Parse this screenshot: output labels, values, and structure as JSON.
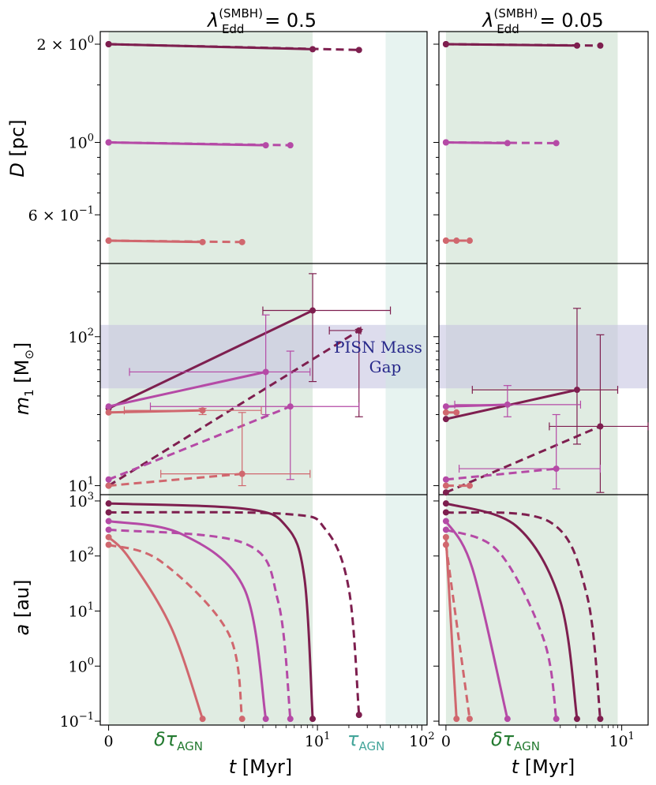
{
  "figure": {
    "col_titles": [
      {
        "text": "λ",
        "sup": "(SMBH)",
        "sub": "Edd",
        "rest": " = 0.5"
      },
      {
        "text": "λ",
        "sup": "(SMBH)",
        "sub": "Edd",
        "rest": " = 0.05"
      }
    ],
    "xlabel": {
      "var": "t",
      "unit": " [Myr]"
    },
    "band_labels": {
      "short": {
        "main": "δτ",
        "sub": "AGN"
      },
      "long": {
        "main": "τ",
        "sub": "AGN"
      }
    },
    "pisn_label": [
      "PISN Mass",
      "Gap"
    ],
    "colors": {
      "c1": "#7e1f4f",
      "c2": "#b54aa6",
      "c3": "#d0676e",
      "band_short": "#d5e6d8",
      "band_long": "#cfe8e2",
      "pisn": "#c6c4e1",
      "short_label": "#237a30",
      "long_label": "#44a59a",
      "pisn_text": "#27288a"
    }
  },
  "chart_data": [
    {
      "type": "line",
      "panel": "D vs t, λ=0.5",
      "ylabel": {
        "var": "D",
        "unit": " [pc]"
      },
      "ytick_labels": [
        "2 × 10",
        "10",
        "6 × 10"
      ],
      "ytick_sups": [
        "0",
        "0",
        "−1"
      ],
      "series": [
        {
          "color": "c1",
          "style": "solid",
          "points": [
            [
              0,
              2.0
            ],
            [
              9,
              1.93
            ]
          ]
        },
        {
          "color": "c1",
          "style": "dashed",
          "points": [
            [
              0,
              2.0
            ],
            [
              25,
              1.92
            ]
          ]
        },
        {
          "color": "c2",
          "style": "solid",
          "points": [
            [
              0,
              1.0
            ],
            [
              3.2,
              0.98
            ]
          ]
        },
        {
          "color": "c2",
          "style": "dashed",
          "points": [
            [
              0,
              1.0
            ],
            [
              5.5,
              0.98
            ]
          ]
        },
        {
          "color": "c3",
          "style": "solid",
          "points": [
            [
              0,
              0.5
            ],
            [
              0.9,
              0.495
            ]
          ]
        },
        {
          "color": "c3",
          "style": "dashed",
          "points": [
            [
              0,
              0.5
            ],
            [
              1.9,
              0.495
            ]
          ]
        }
      ]
    },
    {
      "type": "line",
      "panel": "D vs t, λ=0.05",
      "series": [
        {
          "color": "c1",
          "style": "solid",
          "points": [
            [
              0,
              2.0
            ],
            [
              3.1,
              1.98
            ]
          ]
        },
        {
          "color": "c1",
          "style": "dashed",
          "points": [
            [
              0,
              2.0
            ],
            [
              5.7,
              1.98
            ]
          ]
        },
        {
          "color": "c2",
          "style": "solid",
          "points": [
            [
              0,
              1.0
            ],
            [
              0.7,
              0.995
            ]
          ]
        },
        {
          "color": "c2",
          "style": "dashed",
          "points": [
            [
              0,
              1.0
            ],
            [
              1.8,
              0.995
            ]
          ]
        },
        {
          "color": "c3",
          "style": "solid",
          "points": [
            [
              0,
              0.5
            ],
            [
              0.12,
              0.5
            ]
          ]
        },
        {
          "color": "c3",
          "style": "dashed",
          "points": [
            [
              0,
              0.5
            ],
            [
              0.27,
              0.5
            ]
          ]
        }
      ]
    },
    {
      "type": "line",
      "panel": "m1 vs t, λ=0.5",
      "ylabel": {
        "var": "m",
        "sub": "1",
        "unit": " [M",
        "unit_sub": "⊙",
        "close": "]"
      },
      "ytick_labels": [
        "10",
        "10"
      ],
      "ytick_sups": [
        "2",
        "1"
      ],
      "series": [
        {
          "color": "c1",
          "style": "solid",
          "points": [
            [
              0,
              33
            ],
            [
              9,
              150
            ]
          ],
          "errorbar": {
            "x": 9,
            "y": 150,
            "xlo": 3,
            "xhi": 50,
            "ylo": 50,
            "yhi": 265
          }
        },
        {
          "color": "c1",
          "style": "dashed",
          "points": [
            [
              0,
              10
            ],
            [
              25,
              110
            ]
          ],
          "errorbar": {
            "x": 25,
            "y": 110,
            "xlo": 13,
            "xhi": 26,
            "ylo": 29,
            "yhi": 112
          }
        },
        {
          "color": "c2",
          "style": "solid",
          "points": [
            [
              0,
              34
            ],
            [
              3.2,
              58
            ]
          ],
          "errorbar": {
            "x": 3.2,
            "y": 58,
            "xlo": 0.2,
            "xhi": 8.5,
            "ylo": 30,
            "yhi": 140
          }
        },
        {
          "color": "c2",
          "style": "dashed",
          "points": [
            [
              0,
              11
            ],
            [
              5.5,
              34
            ]
          ],
          "errorbar": {
            "x": 5.5,
            "y": 34,
            "xlo": 0.4,
            "xhi": 25,
            "ylo": 11,
            "yhi": 80
          }
        },
        {
          "color": "c3",
          "style": "solid",
          "points": [
            [
              0,
              31
            ],
            [
              0.9,
              32
            ]
          ],
          "errorbar": {
            "x": 0.9,
            "y": 32,
            "xlo": 0.15,
            "xhi": 2.9,
            "ylo": 30,
            "yhi": 33
          }
        },
        {
          "color": "c3",
          "style": "dashed",
          "points": [
            [
              0,
              10
            ],
            [
              1.9,
              12
            ]
          ],
          "errorbar": {
            "x": 1.9,
            "y": 12,
            "xlo": 0.5,
            "xhi": 8.5,
            "ylo": 10,
            "yhi": 31
          }
        }
      ]
    },
    {
      "type": "line",
      "panel": "m1 vs t, λ=0.05",
      "series": [
        {
          "color": "c1",
          "style": "solid",
          "points": [
            [
              0,
              28
            ],
            [
              3.1,
              44
            ]
          ],
          "errorbar": {
            "x": 3.1,
            "y": 44,
            "xlo": 0.3,
            "xhi": 9,
            "ylo": 19,
            "yhi": 155
          }
        },
        {
          "color": "c1",
          "style": "dashed",
          "points": [
            [
              0,
              9
            ],
            [
              5.7,
              25
            ]
          ],
          "errorbar": {
            "x": 5.7,
            "y": 25,
            "xlo": 1.5,
            "xhi": 22,
            "ylo": 9,
            "yhi": 103
          }
        },
        {
          "color": "c2",
          "style": "solid",
          "points": [
            [
              0,
              34
            ],
            [
              0.7,
              35
            ]
          ],
          "errorbar": {
            "x": 0.7,
            "y": 35,
            "xlo": 0.1,
            "xhi": 3.4,
            "ylo": 29,
            "yhi": 47
          }
        },
        {
          "color": "c2",
          "style": "dashed",
          "points": [
            [
              0,
              11
            ],
            [
              1.8,
              13
            ]
          ],
          "errorbar": {
            "x": 1.8,
            "y": 13,
            "xlo": 0.15,
            "xhi": 5.7,
            "ylo": 9.5,
            "yhi": 30
          }
        },
        {
          "color": "c3",
          "style": "solid",
          "points": [
            [
              0,
              31
            ],
            [
              0.12,
              31
            ]
          ]
        },
        {
          "color": "c3",
          "style": "dashed",
          "points": [
            [
              0,
              10
            ],
            [
              0.27,
              10
            ]
          ]
        }
      ]
    },
    {
      "type": "line",
      "panel": "a vs t, λ=0.5",
      "ylabel": {
        "var": "a",
        "unit": " [au]"
      },
      "ytick_labels": [
        "10",
        "10",
        "10",
        "10",
        "10"
      ],
      "ytick_sups": [
        "3",
        "2",
        "1",
        "0",
        "−1"
      ],
      "xtick_labels": [
        "0",
        "10",
        "10"
      ],
      "xtick_sups": [
        "",
        "1",
        "2"
      ],
      "series": [
        {
          "color": "c1",
          "style": "solid",
          "points": [
            [
              0,
              900
            ],
            [
              2,
              720
            ],
            [
              5,
              350
            ],
            [
              7.5,
              40
            ],
            [
              9,
              0.11
            ]
          ]
        },
        {
          "color": "c1",
          "style": "dashed",
          "points": [
            [
              0,
              620
            ],
            [
              5,
              580
            ],
            [
              12,
              300
            ],
            [
              20,
              25
            ],
            [
              25,
              0.13
            ]
          ]
        },
        {
          "color": "c2",
          "style": "solid",
          "points": [
            [
              0,
              430
            ],
            [
              0.7,
              250
            ],
            [
              2,
              25
            ],
            [
              3.2,
              0.11
            ]
          ]
        },
        {
          "color": "c2",
          "style": "dashed",
          "points": [
            [
              0,
              300
            ],
            [
              2,
              170
            ],
            [
              4.2,
              15
            ],
            [
              5.5,
              0.11
            ]
          ]
        },
        {
          "color": "c3",
          "style": "solid",
          "points": [
            [
              0,
              220
            ],
            [
              0.2,
              90
            ],
            [
              0.6,
              5
            ],
            [
              0.9,
              0.11
            ]
          ]
        },
        {
          "color": "c3",
          "style": "dashed",
          "points": [
            [
              0,
              160
            ],
            [
              0.5,
              80
            ],
            [
              1.4,
              4
            ],
            [
              1.9,
              0.11
            ]
          ]
        }
      ]
    },
    {
      "type": "line",
      "panel": "a vs t, λ=0.05",
      "xtick_labels": [
        "0",
        "10"
      ],
      "xtick_sups": [
        "",
        "1"
      ],
      "series": [
        {
          "color": "c1",
          "style": "solid",
          "points": [
            [
              0,
              900
            ],
            [
              0.8,
              350
            ],
            [
              2,
              15
            ],
            [
              3.1,
              0.11
            ]
          ]
        },
        {
          "color": "c1",
          "style": "dashed",
          "points": [
            [
              0,
              620
            ],
            [
              1.5,
              420
            ],
            [
              4,
              20
            ],
            [
              5.7,
              0.11
            ]
          ]
        },
        {
          "color": "c2",
          "style": "solid",
          "points": [
            [
              0,
              430
            ],
            [
              0.3,
              60
            ],
            [
              0.7,
              0.11
            ]
          ]
        },
        {
          "color": "c2",
          "style": "dashed",
          "points": [
            [
              0,
              300
            ],
            [
              0.6,
              120
            ],
            [
              1.3,
              3
            ],
            [
              1.8,
              0.11
            ]
          ]
        },
        {
          "color": "c3",
          "style": "solid",
          "points": [
            [
              0,
              220
            ],
            [
              0.12,
              0.11
            ]
          ]
        },
        {
          "color": "c3",
          "style": "dashed",
          "points": [
            [
              0,
              160
            ],
            [
              0.27,
              0.11
            ]
          ]
        }
      ]
    }
  ]
}
